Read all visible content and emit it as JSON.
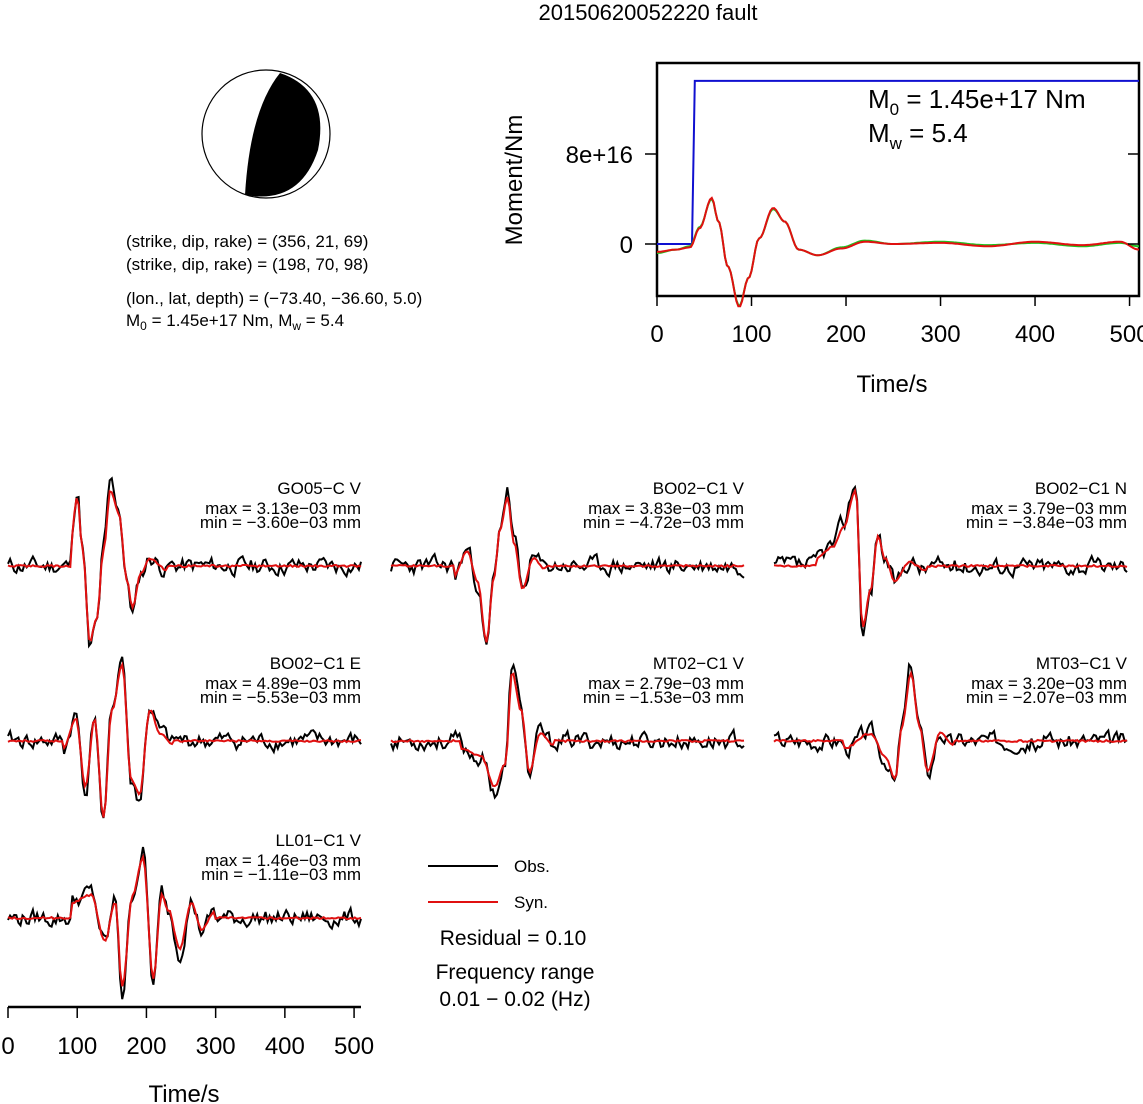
{
  "title": "20150620052220 fault",
  "mechanism": {
    "line1": "(strike, dip, rake) = (356, 21, 69)",
    "line2": "(strike, dip, rake) = (198, 70, 98)",
    "line3": "(lon., lat, depth) = (−73.40, −36.60, 5.0)",
    "m0_label": "M",
    "m0_sub": "0",
    "m0_value": " = 1.45e+17 Nm, M",
    "mw_sub": "w",
    "mw_value": " = 5.4"
  },
  "colors": {
    "obs": "#000000",
    "syn": "#e01010",
    "moment": "#1010d0",
    "stf": "#20c020",
    "beachball_fill": "#000000"
  },
  "chart_data": [
    {
      "type": "line",
      "name": "moment-rate",
      "xlabel": "Time/s",
      "ylabel": "Moment/Nm",
      "xlim": [
        0,
        510
      ],
      "xticks": [
        "0",
        "100",
        "200",
        "300",
        "400",
        "500"
      ],
      "yticks": [
        "0",
        "8e+16"
      ],
      "annotation": {
        "m0": "M",
        "m0_sub": "0",
        "m0_value": " = 1.45e+17 Nm",
        "mw": "M",
        "mw_sub": "w",
        "mw_value": " = 5.4"
      },
      "series": [
        {
          "color": "#1010d0",
          "points": [
            [
              0,
              0
            ],
            [
              37,
              0
            ],
            [
              40,
              1.45e+17
            ],
            [
              510,
              1.45e+17
            ]
          ]
        },
        {
          "color": "#20c020",
          "points": [
            [
              0,
              -8000000000000000.0
            ],
            [
              20,
              -5000000000000000.0
            ],
            [
              35,
              -2000000000000000.0
            ],
            [
              45,
              1.5e+16
            ],
            [
              58,
              4e+16
            ],
            [
              65,
              2e+16
            ],
            [
              75,
              -2e+16
            ],
            [
              87,
              -5.5e+16
            ],
            [
              97,
              -3e+16
            ],
            [
              108,
              5000000000000000.0
            ],
            [
              123,
              3.1e+16
            ],
            [
              135,
              2e+16
            ],
            [
              150,
              -5000000000000000.0
            ],
            [
              170,
              -1e+16
            ],
            [
              195,
              -3000000000000000.0
            ],
            [
              220,
              3000000000000000.0
            ],
            [
              250,
              0
            ],
            [
              300,
              2000000000000000.0
            ],
            [
              350,
              -1000000000000000.0
            ],
            [
              400,
              1000000000000000.0
            ],
            [
              450,
              -2000000000000000.0
            ],
            [
              490,
              1000000000000000.0
            ],
            [
              510,
              -2000000000000000.0
            ]
          ]
        },
        {
          "color": "#e01010",
          "points": [
            [
              0,
              -7000000000000000.0
            ],
            [
              20,
              -5000000000000000.0
            ],
            [
              35,
              -3000000000000000.0
            ],
            [
              45,
              1.4e+16
            ],
            [
              58,
              4.1e+16
            ],
            [
              65,
              2e+16
            ],
            [
              75,
              -2e+16
            ],
            [
              87,
              -5.6e+16
            ],
            [
              97,
              -3e+16
            ],
            [
              108,
              5000000000000000.0
            ],
            [
              123,
              3.2e+16
            ],
            [
              135,
              2e+16
            ],
            [
              150,
              -5000000000000000.0
            ],
            [
              170,
              -1e+16
            ],
            [
              195,
              -4000000000000000.0
            ],
            [
              220,
              2000000000000000.0
            ],
            [
              250,
              0
            ],
            [
              300,
              1000000000000000.0
            ],
            [
              350,
              -2000000000000000.0
            ],
            [
              400,
              2000000000000000.0
            ],
            [
              450,
              -1000000000000000.0
            ],
            [
              490,
              2000000000000000.0
            ],
            [
              510,
              -5000000000000000.0
            ]
          ]
        }
      ]
    },
    {
      "type": "line",
      "name": "waveforms",
      "xlabel": "Time/s",
      "xlim": [
        0,
        510
      ],
      "xticks": [
        "0",
        "100",
        "200",
        "300",
        "400",
        "500"
      ],
      "legend": [
        {
          "label": "Obs.",
          "color": "#000000"
        },
        {
          "label": "Syn.",
          "color": "#e01010"
        }
      ],
      "residual": "Residual = 0.10",
      "freq_title": "Frequency range",
      "freq_value": "0.01 − 0.02 (Hz)",
      "stations": [
        {
          "name": "GO05−C V",
          "max": "max = 3.13e−03 mm",
          "min": "min = −3.60e−03 mm",
          "seed": 11,
          "wave": [
            [
              90,
              0.3
            ],
            [
              100,
              0.9
            ],
            [
              108,
              0.2
            ],
            [
              118,
              -1.0
            ],
            [
              128,
              -0.7
            ],
            [
              138,
              0.2
            ],
            [
              148,
              1.0
            ],
            [
              160,
              0.7
            ],
            [
              172,
              -0.2
            ],
            [
              180,
              -0.55
            ],
            [
              192,
              -0.1
            ],
            [
              205,
              0.1
            ],
            [
              230,
              -0.05
            ]
          ]
        },
        {
          "name": "BO02−C1 V",
          "max": "max = 3.83e−03 mm",
          "min": "min = −4.72e−03 mm",
          "seed": 23,
          "wave": [
            [
              90,
              -0.15
            ],
            [
              110,
              0.2
            ],
            [
              125,
              -0.2
            ],
            [
              138,
              -1.0
            ],
            [
              148,
              -0.2
            ],
            [
              158,
              0.5
            ],
            [
              168,
              0.9
            ],
            [
              178,
              0.3
            ],
            [
              190,
              -0.3
            ],
            [
              205,
              0.1
            ],
            [
              225,
              -0.05
            ]
          ]
        },
        {
          "name": "BO02−C1 N",
          "max": "max = 3.79e−03 mm",
          "min": "min = −3.84e−03 mm",
          "seed": 37,
          "wave": [
            [
              60,
              0.1
            ],
            [
              85,
              0.25
            ],
            [
              100,
              0.5
            ],
            [
              118,
              1.0
            ],
            [
              128,
              -0.8
            ],
            [
              140,
              -0.3
            ],
            [
              150,
              0.4
            ],
            [
              160,
              0.1
            ],
            [
              175,
              -0.2
            ],
            [
              195,
              0.05
            ],
            [
              220,
              -0.05
            ]
          ]
        },
        {
          "name": "BO02−C1 E",
          "max": "max = 4.89e−03 mm",
          "min": "min = −5.53e−03 mm",
          "seed": 41,
          "wave": [
            [
              80,
              -0.1
            ],
            [
              98,
              0.3
            ],
            [
              112,
              -0.6
            ],
            [
              125,
              0.3
            ],
            [
              138,
              -1.0
            ],
            [
              150,
              0.4
            ],
            [
              165,
              1.0
            ],
            [
              178,
              -0.5
            ],
            [
              190,
              -0.7
            ],
            [
              205,
              0.4
            ],
            [
              220,
              0.1
            ],
            [
              240,
              -0.05
            ]
          ]
        },
        {
          "name": "MT02−C1 V",
          "max": "max = 2.79e−03 mm",
          "min": "min = −1.53e−03 mm",
          "seed": 53,
          "wave": [
            [
              100,
              -0.1
            ],
            [
              130,
              -0.2
            ],
            [
              150,
              -0.6
            ],
            [
              165,
              -0.3
            ],
            [
              175,
              0.9
            ],
            [
              188,
              0.4
            ],
            [
              200,
              -0.4
            ],
            [
              215,
              0.1
            ],
            [
              235,
              -0.05
            ]
          ]
        },
        {
          "name": "MT03−C1 V",
          "max": "max = 3.20e−03 mm",
          "min": "min = −2.07e−03 mm",
          "seed": 67,
          "wave": [
            [
              100,
              -0.1
            ],
            [
              140,
              0.1
            ],
            [
              160,
              -0.2
            ],
            [
              175,
              -0.5
            ],
            [
              185,
              0.2
            ],
            [
              198,
              0.9
            ],
            [
              210,
              0.2
            ],
            [
              222,
              -0.4
            ],
            [
              240,
              0.1
            ],
            [
              260,
              -0.05
            ]
          ]
        },
        {
          "name": "LL01−C1 V",
          "max": "max = 1.46e−03 mm",
          "min": "min = −1.11e−03 mm",
          "seed": 79,
          "wave": [
            [
              90,
              0.2
            ],
            [
              120,
              0.3
            ],
            [
              140,
              -0.3
            ],
            [
              155,
              0.2
            ],
            [
              165,
              -0.9
            ],
            [
              180,
              0.3
            ],
            [
              195,
              0.8
            ],
            [
              210,
              -0.8
            ],
            [
              222,
              0.3
            ],
            [
              232,
              0.1
            ],
            [
              248,
              -0.4
            ],
            [
              265,
              0.2
            ],
            [
              280,
              -0.15
            ],
            [
              300,
              0.1
            ]
          ]
        }
      ]
    }
  ]
}
